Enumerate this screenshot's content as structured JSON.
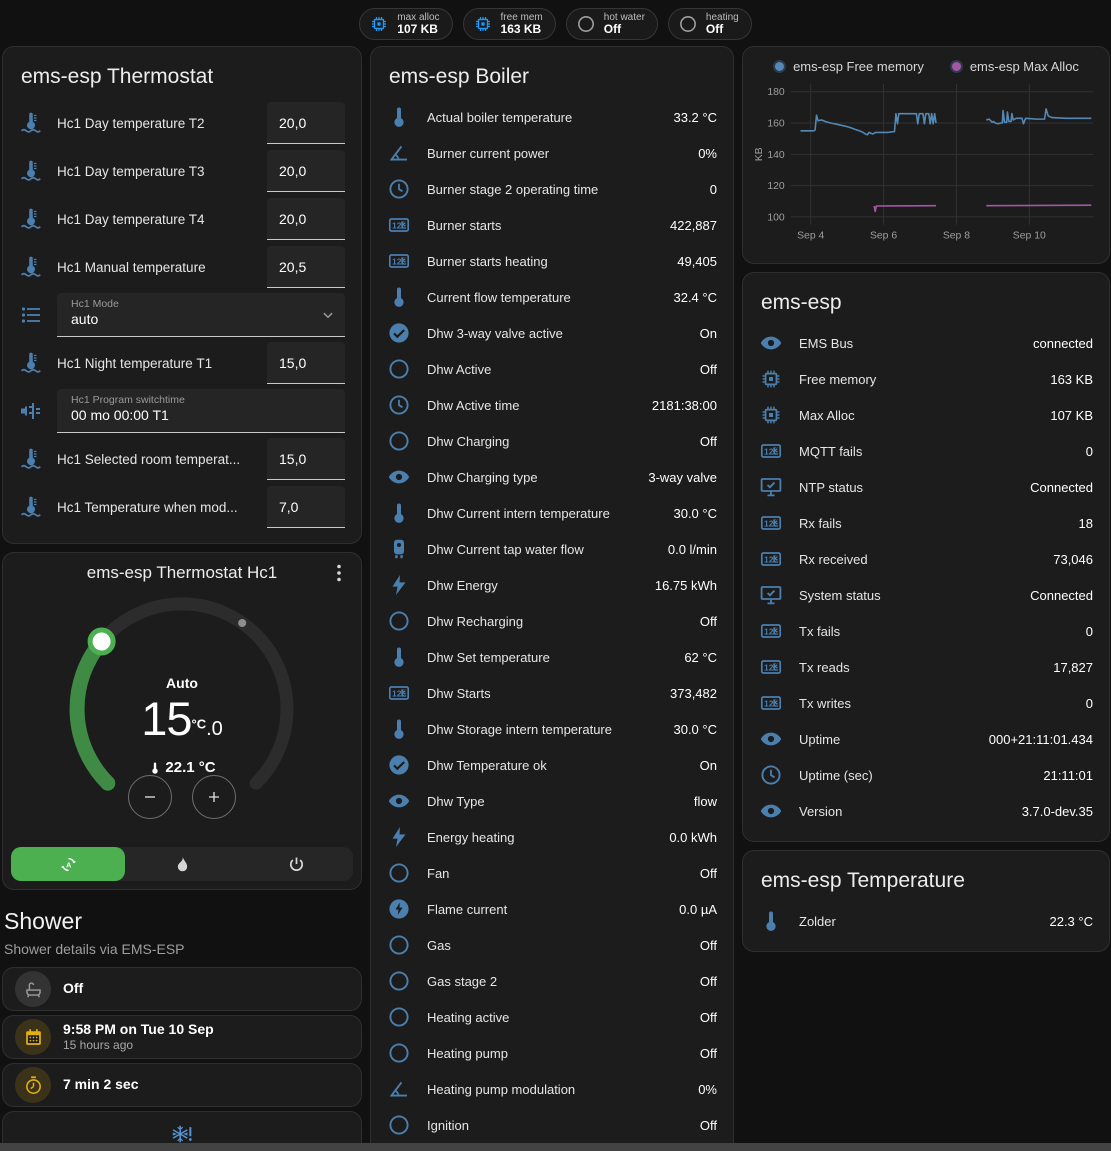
{
  "badges": [
    {
      "icon": "chip",
      "icon_color": "#2196f3",
      "label": "max alloc",
      "value": "107 KB"
    },
    {
      "icon": "chip",
      "icon_color": "#2196f3",
      "label": "free mem",
      "value": "163 KB"
    },
    {
      "icon": "radiobox",
      "icon_color": "#9e9e9e",
      "label": "hot water",
      "value": "Off"
    },
    {
      "icon": "radiobox",
      "icon_color": "#9e9e9e",
      "label": "heating",
      "value": "Off"
    }
  ],
  "thermostat_card": {
    "title": "ems-esp Thermostat",
    "rows": [
      {
        "type": "field",
        "icon": "thermo-water",
        "label": "Hc1 Day temperature T2",
        "value": "20,0"
      },
      {
        "type": "field",
        "icon": "thermo-water",
        "label": "Hc1 Day temperature T3",
        "value": "20,0"
      },
      {
        "type": "field",
        "icon": "thermo-water",
        "label": "Hc1 Day temperature T4",
        "value": "20,0"
      },
      {
        "type": "field",
        "icon": "thermo-water",
        "label": "Hc1 Manual temperature",
        "value": "20,5"
      },
      {
        "type": "select",
        "icon": "list",
        "label": "Hc1 Mode",
        "value": "auto"
      },
      {
        "type": "field",
        "icon": "thermo-water",
        "label": "Hc1 Night temperature T1",
        "value": "15,0"
      },
      {
        "type": "textbox",
        "icon": "valve",
        "label": "Hc1 Program switchtime",
        "value": "00 mo 00:00 T1"
      },
      {
        "type": "field",
        "icon": "thermo-water",
        "label": "Hc1 Selected room temperat...",
        "value": "15,0"
      },
      {
        "type": "field",
        "icon": "thermo-water",
        "label": "Hc1 Temperature when mod...",
        "value": "7,0"
      }
    ]
  },
  "dial_card": {
    "title": "ems-esp Thermostat Hc1",
    "mode_label": "Auto",
    "target_int": "15",
    "target_unit": "°C",
    "target_dec": ".0",
    "current": "22.1 °C",
    "arc_color": "#3f8b45",
    "handle_color": "#4caf50",
    "modes": [
      {
        "icon": "autorenew",
        "name": "auto-mode-button",
        "active": true
      },
      {
        "icon": "fire",
        "name": "heat-mode-button",
        "active": false
      },
      {
        "icon": "power",
        "name": "off-mode-button",
        "active": false
      }
    ]
  },
  "shower": {
    "title": "Shower",
    "subtitle": "Shower details via EMS-ESP",
    "tiles": [
      {
        "icon": "bathtub",
        "icon_color": "#9e9e9e",
        "bg": "rgba(158,158,158,0.18)",
        "primary": "Off",
        "secondary": ""
      },
      {
        "icon": "calendar",
        "icon_color": "#e3b00f",
        "bg": "rgba(227,176,15,0.16)",
        "primary": "9:58 PM on Tue 10 Sep",
        "secondary": "15 hours ago"
      },
      {
        "icon": "timer",
        "icon_color": "#e3b00f",
        "bg": "rgba(227,176,15,0.16)",
        "primary": "7 min 2 sec",
        "secondary": ""
      }
    ],
    "frost_icon": "snowflake-alert"
  },
  "boiler_card": {
    "title": "ems-esp Boiler",
    "rows": [
      {
        "icon": "thermometer",
        "label": "Actual boiler temperature",
        "value": "33.2 °C"
      },
      {
        "icon": "angle",
        "label": "Burner current power",
        "value": "0%"
      },
      {
        "icon": "clock",
        "label": "Burner stage 2 operating time",
        "value": "0"
      },
      {
        "icon": "counter",
        "label": "Burner starts",
        "value": "422,887"
      },
      {
        "icon": "counter",
        "label": "Burner starts heating",
        "value": "49,405"
      },
      {
        "icon": "thermometer",
        "label": "Current flow temperature",
        "value": "32.4 °C"
      },
      {
        "icon": "check-circle",
        "label": "Dhw 3-way valve active",
        "value": "On"
      },
      {
        "icon": "circle",
        "label": "Dhw Active",
        "value": "Off"
      },
      {
        "icon": "clock",
        "label": "Dhw Active time",
        "value": "2181:38:00"
      },
      {
        "icon": "circle",
        "label": "Dhw Charging",
        "value": "Off"
      },
      {
        "icon": "eye",
        "label": "Dhw Charging type",
        "value": "3-way valve"
      },
      {
        "icon": "thermometer",
        "label": "Dhw Current intern temperature",
        "value": "30.0 °C"
      },
      {
        "icon": "water-boiler",
        "label": "Dhw Current tap water flow",
        "value": "0.0 l/min"
      },
      {
        "icon": "flash",
        "label": "Dhw Energy",
        "value": "16.75 kWh"
      },
      {
        "icon": "circle",
        "label": "Dhw Recharging",
        "value": "Off"
      },
      {
        "icon": "thermometer",
        "label": "Dhw Set temperature",
        "value": "62 °C"
      },
      {
        "icon": "counter",
        "label": "Dhw Starts",
        "value": "373,482"
      },
      {
        "icon": "thermometer",
        "label": "Dhw Storage intern temperature",
        "value": "30.0 °C"
      },
      {
        "icon": "check-circle",
        "label": "Dhw Temperature ok",
        "value": "On"
      },
      {
        "icon": "eye",
        "label": "Dhw Type",
        "value": "flow"
      },
      {
        "icon": "flash",
        "label": "Energy heating",
        "value": "0.0 kWh"
      },
      {
        "icon": "circle",
        "label": "Fan",
        "value": "Off"
      },
      {
        "icon": "flash-circle",
        "label": "Flame current",
        "value": "0.0 µA"
      },
      {
        "icon": "circle",
        "label": "Gas",
        "value": "Off"
      },
      {
        "icon": "circle",
        "label": "Gas stage 2",
        "value": "Off"
      },
      {
        "icon": "circle",
        "label": "Heating active",
        "value": "Off"
      },
      {
        "icon": "circle",
        "label": "Heating pump",
        "value": "Off"
      },
      {
        "icon": "angle",
        "label": "Heating pump modulation",
        "value": "0%"
      },
      {
        "icon": "circle",
        "label": "Ignition",
        "value": "Off"
      }
    ]
  },
  "chart_data": {
    "type": "line",
    "ylabel": "KB",
    "ylim": [
      95,
      185
    ],
    "yticks": [
      100,
      120,
      140,
      160,
      180
    ],
    "xlim": [
      3.45,
      11.75
    ],
    "xticks": [
      {
        "x": 4,
        "label": "Sep 4"
      },
      {
        "x": 6,
        "label": "Sep 6"
      },
      {
        "x": 8,
        "label": "Sep 8"
      },
      {
        "x": 10,
        "label": "Sep 10"
      }
    ],
    "grid": true,
    "legend_position": "top",
    "series": [
      {
        "name": "ems-esp Free memory",
        "color": "#5488b5",
        "segments": [
          [
            [
              3.72,
              155
            ],
            [
              4.08,
              155
            ],
            [
              4.12,
              155.5
            ],
            [
              4.16,
              165
            ],
            [
              4.2,
              161.5
            ],
            [
              4.3,
              162
            ],
            [
              4.4,
              161
            ],
            [
              4.55,
              160
            ],
            [
              4.75,
              159
            ],
            [
              4.95,
              158
            ],
            [
              5.1,
              157
            ],
            [
              5.22,
              156
            ],
            [
              5.34,
              155
            ],
            [
              5.44,
              154
            ],
            [
              5.5,
              153
            ],
            [
              5.56,
              152.5
            ],
            [
              5.6,
              154
            ],
            [
              5.7,
              153
            ],
            [
              5.78,
              154
            ],
            [
              6.1,
              154
            ],
            [
              6.3,
              154.5
            ],
            [
              6.34,
              166
            ],
            [
              6.38,
              159.5
            ],
            [
              6.42,
              166
            ],
            [
              6.9,
              166
            ],
            [
              6.94,
              159.5
            ],
            [
              6.98,
              166
            ],
            [
              7.08,
              166
            ],
            [
              7.12,
              159.5
            ],
            [
              7.16,
              166
            ],
            [
              7.24,
              166
            ],
            [
              7.28,
              159.5
            ],
            [
              7.32,
              166
            ],
            [
              7.36,
              159.5
            ],
            [
              7.4,
              166
            ],
            [
              7.44,
              160
            ]
          ],
          [
            [
              8.82,
              162
            ],
            [
              8.9,
              162.5
            ],
            [
              8.98,
              160.5
            ],
            [
              9.02,
              161
            ],
            [
              9.06,
              160
            ],
            [
              9.14,
              159.5
            ],
            [
              9.22,
              160
            ],
            [
              9.26,
              160
            ],
            [
              9.28,
              168
            ],
            [
              9.32,
              160.5
            ],
            [
              9.38,
              160.5
            ],
            [
              9.4,
              167
            ],
            [
              9.44,
              161
            ],
            [
              9.5,
              161
            ],
            [
              9.52,
              166
            ],
            [
              9.56,
              162
            ],
            [
              9.64,
              163
            ],
            [
              9.8,
              163
            ],
            [
              9.84,
              159.5
            ],
            [
              9.9,
              163
            ],
            [
              10.2,
              162.5
            ],
            [
              10.42,
              162.5
            ],
            [
              10.46,
              169
            ],
            [
              10.52,
              164.5
            ],
            [
              10.62,
              163.5
            ],
            [
              11.0,
              163
            ],
            [
              11.7,
              163
            ]
          ]
        ]
      },
      {
        "name": "ems-esp Max Alloc",
        "color": "#a357a3",
        "segments": [
          [
            [
              5.74,
              107
            ],
            [
              5.77,
              103.5
            ],
            [
              5.8,
              107
            ],
            [
              7.44,
              107.2
            ]
          ],
          [
            [
              8.82,
              107.2
            ],
            [
              11.7,
              107.5
            ]
          ]
        ]
      }
    ]
  },
  "emsesp_card": {
    "title": "ems-esp",
    "rows": [
      {
        "icon": "eye",
        "label": "EMS Bus",
        "value": "connected"
      },
      {
        "icon": "chip",
        "label": "Free memory",
        "value": "163 KB"
      },
      {
        "icon": "chip",
        "label": "Max Alloc",
        "value": "107 KB"
      },
      {
        "icon": "counter",
        "label": "MQTT fails",
        "value": "0"
      },
      {
        "icon": "monitor-check",
        "label": "NTP status",
        "value": "Connected"
      },
      {
        "icon": "counter",
        "label": "Rx fails",
        "value": "18"
      },
      {
        "icon": "counter",
        "label": "Rx received",
        "value": "73,046"
      },
      {
        "icon": "monitor-check",
        "label": "System status",
        "value": "Connected"
      },
      {
        "icon": "counter",
        "label": "Tx fails",
        "value": "0"
      },
      {
        "icon": "counter",
        "label": "Tx reads",
        "value": "17,827"
      },
      {
        "icon": "counter",
        "label": "Tx writes",
        "value": "0"
      },
      {
        "icon": "eye",
        "label": "Uptime",
        "value": "000+21:11:01.434"
      },
      {
        "icon": "clock",
        "label": "Uptime (sec)",
        "value": "21:11:01"
      },
      {
        "icon": "eye",
        "label": "Version",
        "value": "3.7.0-dev.35"
      }
    ]
  },
  "temperature_card": {
    "title": "ems-esp Temperature",
    "rows": [
      {
        "icon": "thermometer",
        "label": "Zolder",
        "value": "22.3 °C"
      }
    ]
  }
}
